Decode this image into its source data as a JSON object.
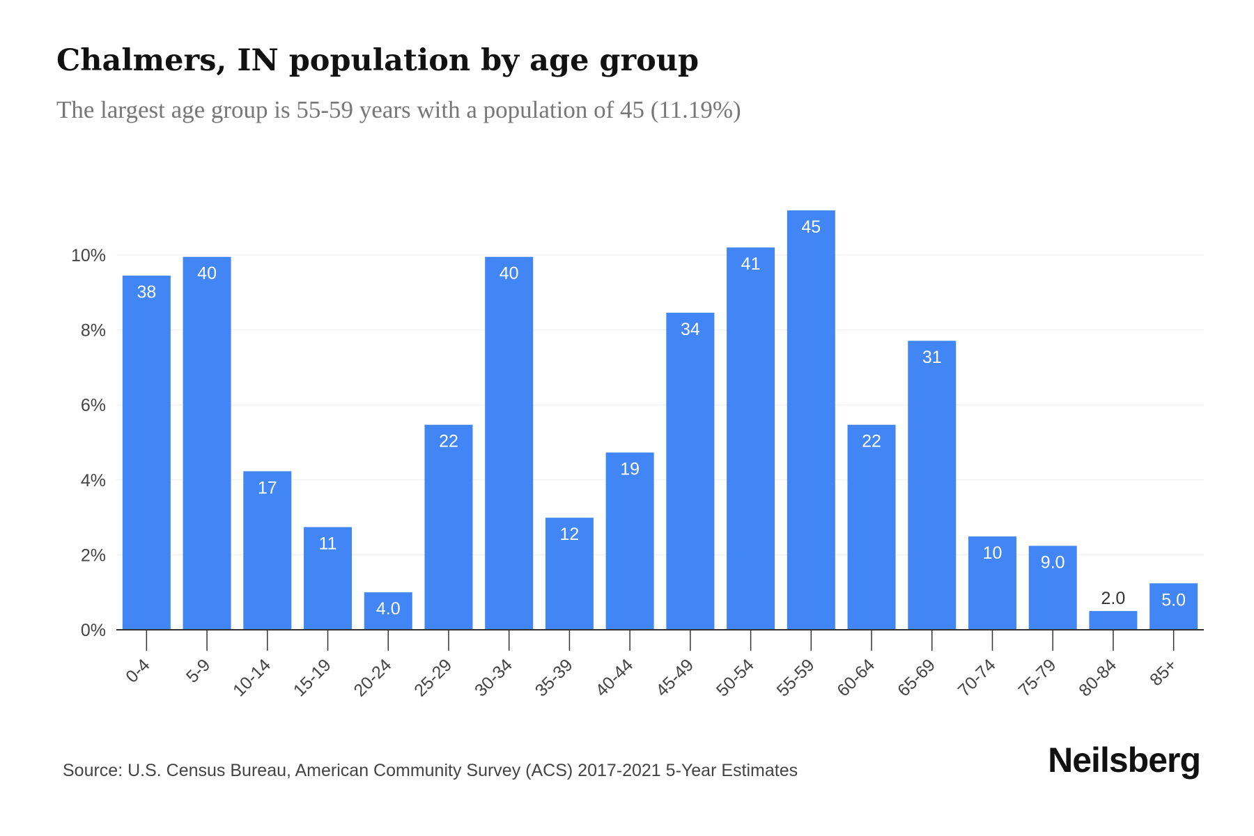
{
  "header": {
    "title": "Chalmers, IN population by age group",
    "subtitle": "The largest age group is 55-59 years with a population of 45 (11.19%)"
  },
  "footer": {
    "source": "Source: U.S. Census Bureau, American Community Survey (ACS) 2017-2021 5-Year Estimates",
    "brand": "Neilsberg"
  },
  "colors": {
    "bar": "#4285f4",
    "bar_label": "#ffffff",
    "bar_label_outside": "#333333",
    "grid": "#eeeeee",
    "axis": "#333333",
    "tick_text": "#444444"
  },
  "chart_data": {
    "type": "bar",
    "categories": [
      "0-4",
      "5-9",
      "10-14",
      "15-19",
      "20-24",
      "25-29",
      "30-34",
      "35-39",
      "40-44",
      "45-49",
      "50-54",
      "55-59",
      "60-64",
      "65-69",
      "70-74",
      "75-79",
      "80-84",
      "85+"
    ],
    "values": [
      9.45,
      9.95,
      4.23,
      2.74,
      1.0,
      5.47,
      9.95,
      2.99,
      4.73,
      8.46,
      10.2,
      11.19,
      5.47,
      7.71,
      2.49,
      2.24,
      0.5,
      1.24
    ],
    "data_labels": [
      "38",
      "40",
      "17",
      "11",
      "4.0",
      "22",
      "40",
      "12",
      "19",
      "34",
      "41",
      "45",
      "22",
      "31",
      "10",
      "9.0",
      "2.0",
      "5.0"
    ],
    "yticks": [
      0,
      2,
      4,
      6,
      8,
      10
    ],
    "ytick_labels": [
      "0%",
      "2%",
      "4%",
      "6%",
      "8%",
      "10%"
    ],
    "ylim": [
      0,
      12
    ],
    "grid": true,
    "xlabel": "",
    "ylabel": ""
  }
}
